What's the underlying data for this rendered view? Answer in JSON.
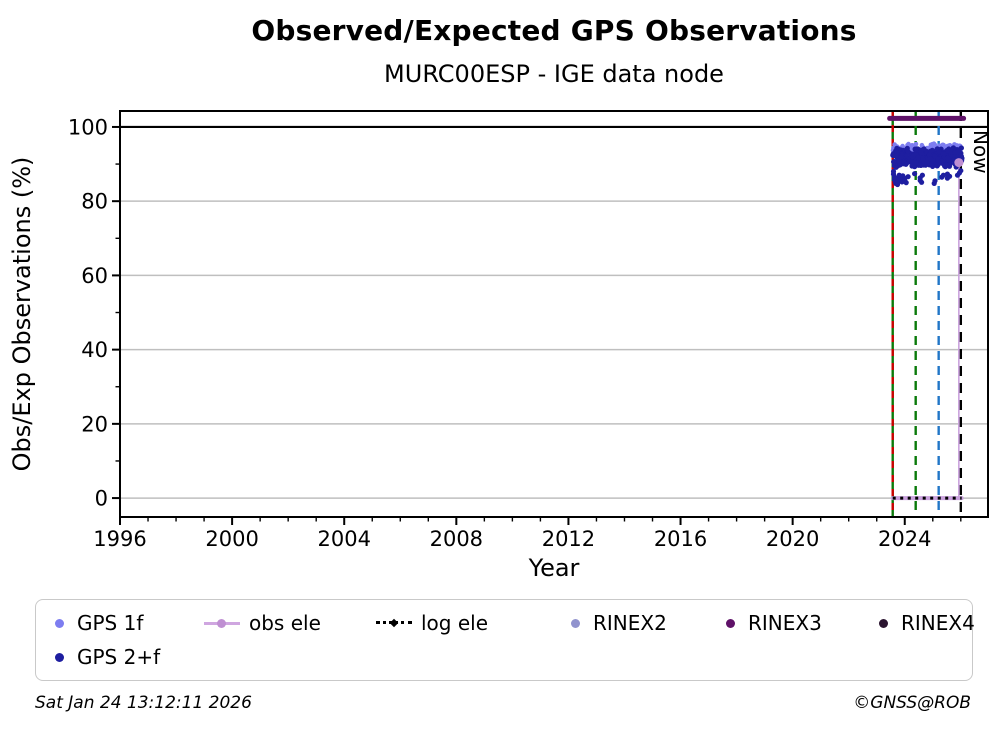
{
  "footer": {
    "generated": "Sat Jan 24 13:12:11 2026",
    "copyright": "©GNSS@ROB"
  },
  "legend": {
    "items": [
      {
        "label": "GPS 1f",
        "marker": "dot",
        "color": "#7d7df0"
      },
      {
        "label": "obs ele",
        "marker": "line-dot",
        "color": "#cfa6e0",
        "marker_color": "#bf8fd2"
      },
      {
        "label": "log ele",
        "marker": "dotted-line",
        "color": "#000000"
      },
      {
        "label": "RINEX2",
        "marker": "dot",
        "color": "#9193ce"
      },
      {
        "label": "RINEX3",
        "marker": "dot",
        "color": "#5f1168"
      },
      {
        "label": "RINEX4",
        "marker": "dot",
        "color": "#2b1430"
      },
      {
        "label": "GPS 2+f",
        "marker": "dot",
        "color": "#1e1ea0"
      }
    ]
  },
  "chart_data": {
    "type": "scatter",
    "title": "Observed/Expected GPS Observations",
    "subtitle": "MURC00ESP - IGE data node",
    "xlabel": "Year",
    "ylabel": "Obs/Exp Observations (%)",
    "xlim": [
      1996,
      2026.97
    ],
    "ylim": [
      -5.1,
      104.3
    ],
    "x_major_ticks": [
      1996,
      2000,
      2004,
      2008,
      2012,
      2016,
      2020,
      2024
    ],
    "x_minor_step": 1,
    "y_major_ticks": [
      0,
      20,
      40,
      60,
      80,
      100
    ],
    "y_minor_step": 10,
    "grid_y": [
      0,
      20,
      40,
      60,
      80
    ],
    "grid_color": "#bfbfbf",
    "grid_on": true,
    "legend_position": "below",
    "reference_lines": [
      {
        "y": 100,
        "color": "#000000",
        "width": 2.2
      }
    ],
    "vlines": [
      {
        "name": "green-solid",
        "x": 2023.57,
        "color": "#0a7a0a",
        "style": "solid",
        "width": 2.4
      },
      {
        "name": "red-dashed",
        "x": 2023.57,
        "color": "#cc0000",
        "style": "dashed",
        "width": 2.4,
        "dash": "7 7"
      },
      {
        "name": "green-dashed",
        "x": 2024.39,
        "color": "#0a7a0a",
        "style": "dashed",
        "width": 2.4,
        "dash": "9 6"
      },
      {
        "name": "blue-dashed",
        "x": 2025.21,
        "color": "#2176c7",
        "style": "dashed",
        "width": 2.4,
        "dash": "9 6"
      },
      {
        "name": "now-line",
        "x": 2026.0,
        "color": "#000000",
        "style": "dashed",
        "width": 2.4,
        "dash": "10 7",
        "label": "Now"
      }
    ],
    "series": [
      {
        "name": "RINEX3",
        "color": "#5f1168",
        "lines": [
          {
            "pts": [
              [
                2023.46,
                102.3
              ],
              [
                2026.1,
                102.3
              ]
            ],
            "width": 5
          }
        ]
      },
      {
        "name": "obs ele",
        "color": "#c9a1dd",
        "marker_color": "#bf8fd2",
        "marker_r": 4.5,
        "lines": [
          {
            "pts": [
              [
                2023.57,
                0
              ],
              [
                2026.03,
                0
              ]
            ],
            "width": 4
          },
          {
            "pts": [
              [
                2025.93,
                0
              ],
              [
                2025.93,
                90.4
              ]
            ],
            "width": 1.6
          }
        ],
        "markers": [
          [
            2025.93,
            90.4
          ]
        ]
      },
      {
        "name": "log ele",
        "color": "#000000",
        "lines": [
          {
            "pts": [
              [
                2023.57,
                0
              ],
              [
                2026.03,
                0
              ]
            ],
            "width": 3,
            "dash": "3 4.5"
          }
        ]
      },
      {
        "name": "GPS 1f",
        "color": "#7d7df0",
        "marker_r": 2.3,
        "cluster": {
          "x_start": 2023.58,
          "x_end": 2026.04,
          "n": 150,
          "y_min": 92.6,
          "y_max": 95.6,
          "seed": 7
        }
      },
      {
        "name": "GPS 2+f",
        "color": "#1e1ea0",
        "marker_r": 2.6,
        "cluster": {
          "x_start": 2023.57,
          "x_end": 2026.05,
          "n": 330,
          "y_min": 89.0,
          "y_max": 94.6,
          "seed": 13
        },
        "outliers": [
          [
            2023.6,
            88.0
          ],
          [
            2023.6,
            87.3
          ],
          [
            2023.63,
            86.5
          ],
          [
            2023.63,
            85.9
          ],
          [
            2023.66,
            85.3
          ],
          [
            2023.68,
            84.8
          ],
          [
            2023.68,
            85.6
          ],
          [
            2023.71,
            86.2
          ],
          [
            2023.74,
            85.0
          ],
          [
            2023.74,
            84.5
          ],
          [
            2023.77,
            85.8
          ],
          [
            2023.8,
            87.0
          ],
          [
            2023.86,
            86.4
          ],
          [
            2023.86,
            85.7
          ],
          [
            2023.9,
            85.2
          ],
          [
            2023.93,
            86.8
          ],
          [
            2024.0,
            85.4
          ],
          [
            2024.0,
            86.1
          ],
          [
            2024.05,
            85.0
          ],
          [
            2024.12,
            86.6
          ],
          [
            2024.35,
            87.4
          ],
          [
            2024.55,
            85.6
          ],
          [
            2024.55,
            86.3
          ],
          [
            2024.6,
            85.1
          ],
          [
            2024.63,
            87.0
          ],
          [
            2025.05,
            84.8
          ],
          [
            2025.08,
            85.5
          ],
          [
            2025.32,
            86.5
          ],
          [
            2025.38,
            87.0
          ],
          [
            2025.52,
            86.2
          ],
          [
            2025.52,
            87.3
          ],
          [
            2025.6,
            86.7
          ],
          [
            2025.88,
            87.0
          ],
          [
            2025.95,
            87.6
          ],
          [
            2026.0,
            88.2
          ]
        ]
      }
    ]
  }
}
